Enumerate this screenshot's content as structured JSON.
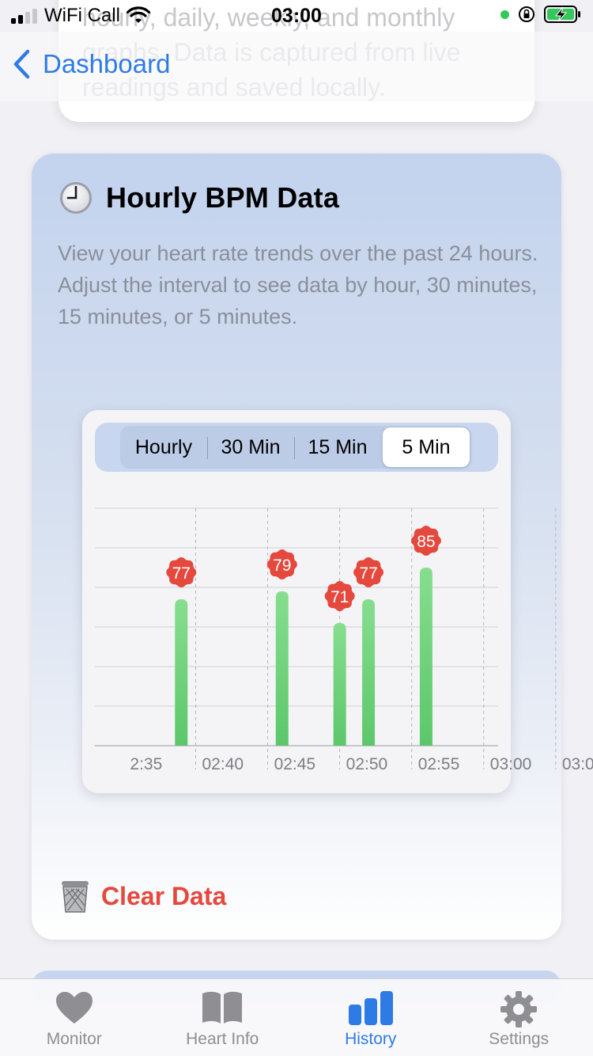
{
  "status_bar": {
    "carrier": "WiFi Call",
    "time": "03:00"
  },
  "nav": {
    "back_label": "Dashboard"
  },
  "prev_card": {
    "text": "hourly, daily, weekly, and monthly graphs. Data is captured from live readings and saved locally."
  },
  "card": {
    "title": "Hourly BPM Data",
    "description": "View your heart rate trends over the past 24 hours. Adjust the interval to see data by hour, 30 minutes, 15 minutes, or 5 minutes.",
    "segments": [
      "Hourly",
      "30 Min",
      "15 Min",
      "5 Min"
    ],
    "selected_segment": "5 Min",
    "clear_label": "Clear Data"
  },
  "chart_data": {
    "type": "bar",
    "x": [
      "02:39",
      "02:46",
      "02:50",
      "02:52",
      "02:56"
    ],
    "values": [
      77,
      79,
      71,
      77,
      85
    ],
    "data_labels": [
      "77",
      "79",
      "71",
      "77",
      "85"
    ],
    "x_tick_labels": [
      "2:35",
      "02:40",
      "02:45",
      "02:50",
      "02:55",
      "03:00",
      "03:0"
    ],
    "ylim": [
      40,
      100
    ],
    "grid": true,
    "bar_color": "#5cc76a",
    "label_color": "#e5483d"
  },
  "tab_bar": {
    "items": [
      {
        "label": "Monitor",
        "icon": "heart-icon"
      },
      {
        "label": "Heart Info",
        "icon": "book-icon"
      },
      {
        "label": "History",
        "icon": "bar-chart-icon"
      },
      {
        "label": "Settings",
        "icon": "gear-icon"
      }
    ],
    "active": "History"
  },
  "colors": {
    "accent": "#2f7be5",
    "danger": "#e5483d"
  }
}
